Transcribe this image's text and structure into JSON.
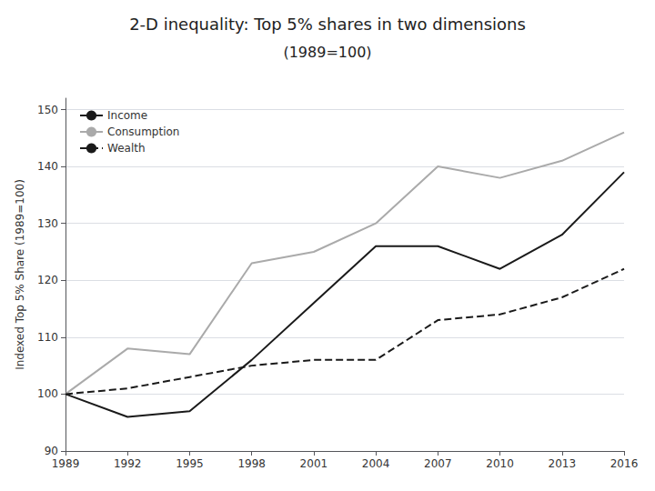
{
  "chart_data": {
    "type": "line",
    "title": "2-D inequality: Top 5% shares in two dimensions",
    "subtitle": "(1989=100)",
    "y_label": "Indexed Top 5% Share (1989=100)",
    "x": [
      1989,
      1992,
      1995,
      1998,
      2001,
      2004,
      2007,
      2010,
      2013,
      2016
    ],
    "series": [
      {
        "name": "Income",
        "color": "#1a1a1a",
        "line_style": "solid",
        "values": [
          100,
          96,
          97,
          106,
          116,
          126,
          126,
          122,
          128,
          139
        ]
      },
      {
        "name": "Consumption",
        "color": "#aaaaaa",
        "line_style": "solid",
        "values": [
          100,
          108,
          107,
          123,
          125,
          130,
          140,
          138,
          141,
          146
        ]
      },
      {
        "name": "Wealth",
        "color": "#1a1a1a",
        "line_style": "dashed",
        "values": [
          100,
          101,
          103,
          105,
          106,
          106,
          113,
          114,
          117,
          122
        ]
      }
    ],
    "xlim": [
      1989,
      2016
    ],
    "xticks": [
      1989,
      1992,
      1995,
      1998,
      2001,
      2004,
      2007,
      2010,
      2013,
      2016
    ],
    "ylim": [
      90,
      152
    ],
    "yticks": [
      90,
      100,
      110,
      120,
      130,
      140,
      150
    ],
    "grid": true,
    "legend": "upper left"
  }
}
